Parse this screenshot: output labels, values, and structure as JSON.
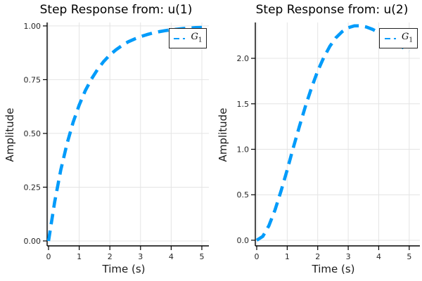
{
  "style": {
    "background": "#FFFFFF",
    "series_color": "#009BFA",
    "grid_color": "#E4E4E4",
    "axis_color": "#000000",
    "text_color": "#1c1c1c",
    "legend_border_color": "#222222"
  },
  "chart_data": [
    {
      "type": "line",
      "title": "Step Response from: u(1)",
      "xlabel": "Time (s)",
      "ylabel": "Amplitude",
      "legend_label": {
        "base": "G",
        "sub": "1"
      },
      "line_style": "dashed",
      "legend_position": "top-right",
      "grid": true,
      "xlim": [
        -0.046,
        5.23
      ],
      "ylim": [
        -0.023,
        1.016
      ],
      "xticks": [
        0,
        1,
        2,
        3,
        4,
        5
      ],
      "xtick_labels": [
        "0",
        "1",
        "2",
        "3",
        "4",
        "5"
      ],
      "yticks": [
        0,
        0.25,
        0.5,
        0.75,
        1.0
      ],
      "ytick_labels": [
        "0.00",
        "0.25",
        "0.50",
        "0.75",
        "1.00"
      ],
      "x": [
        0,
        0.2,
        0.4,
        0.6,
        0.8,
        1.0,
        1.2,
        1.4,
        1.6,
        1.8,
        2.0,
        2.2,
        2.4,
        2.6,
        2.8,
        3.0,
        3.2,
        3.4,
        3.6,
        3.8,
        4.0,
        4.2,
        4.4,
        4.6,
        4.8,
        5.0
      ],
      "y": [
        0,
        0.181,
        0.33,
        0.451,
        0.551,
        0.632,
        0.699,
        0.753,
        0.798,
        0.835,
        0.865,
        0.889,
        0.909,
        0.926,
        0.939,
        0.95,
        0.959,
        0.967,
        0.973,
        0.978,
        0.982,
        0.985,
        0.988,
        0.99,
        0.992,
        0.993
      ]
    },
    {
      "type": "line",
      "title": "Step Response from: u(2)",
      "xlabel": "Time (s)",
      "ylabel": "Amplitude",
      "legend_label": {
        "base": "G",
        "sub": "1"
      },
      "line_style": "dashed",
      "legend_position": "top-right",
      "grid": true,
      "xlim": [
        -0.046,
        5.35
      ],
      "ylim": [
        -0.062,
        2.394
      ],
      "xticks": [
        0,
        1,
        2,
        3,
        4,
        5
      ],
      "xtick_labels": [
        "0",
        "1",
        "2",
        "3",
        "4",
        "5"
      ],
      "yticks": [
        0,
        0.5,
        1.0,
        1.5,
        2.0
      ],
      "ytick_labels": [
        "0.0",
        "0.5",
        "1.0",
        "1.5",
        "2.0"
      ],
      "x": [
        0,
        0.2,
        0.4,
        0.6,
        0.8,
        1.0,
        1.2,
        1.4,
        1.6,
        1.8,
        2.0,
        2.2,
        2.4,
        2.6,
        2.8,
        3.0,
        3.2,
        3.4,
        3.6,
        3.8,
        4.0,
        4.2,
        4.4,
        4.6,
        4.8,
        5.0
      ],
      "y": [
        0,
        0.043,
        0.16,
        0.333,
        0.544,
        0.775,
        1.018,
        1.252,
        1.476,
        1.68,
        1.86,
        2.01,
        2.134,
        2.227,
        2.293,
        2.337,
        2.357,
        2.358,
        2.344,
        2.318,
        2.284,
        2.244,
        2.202,
        2.159,
        2.118,
        2.078
      ]
    }
  ]
}
